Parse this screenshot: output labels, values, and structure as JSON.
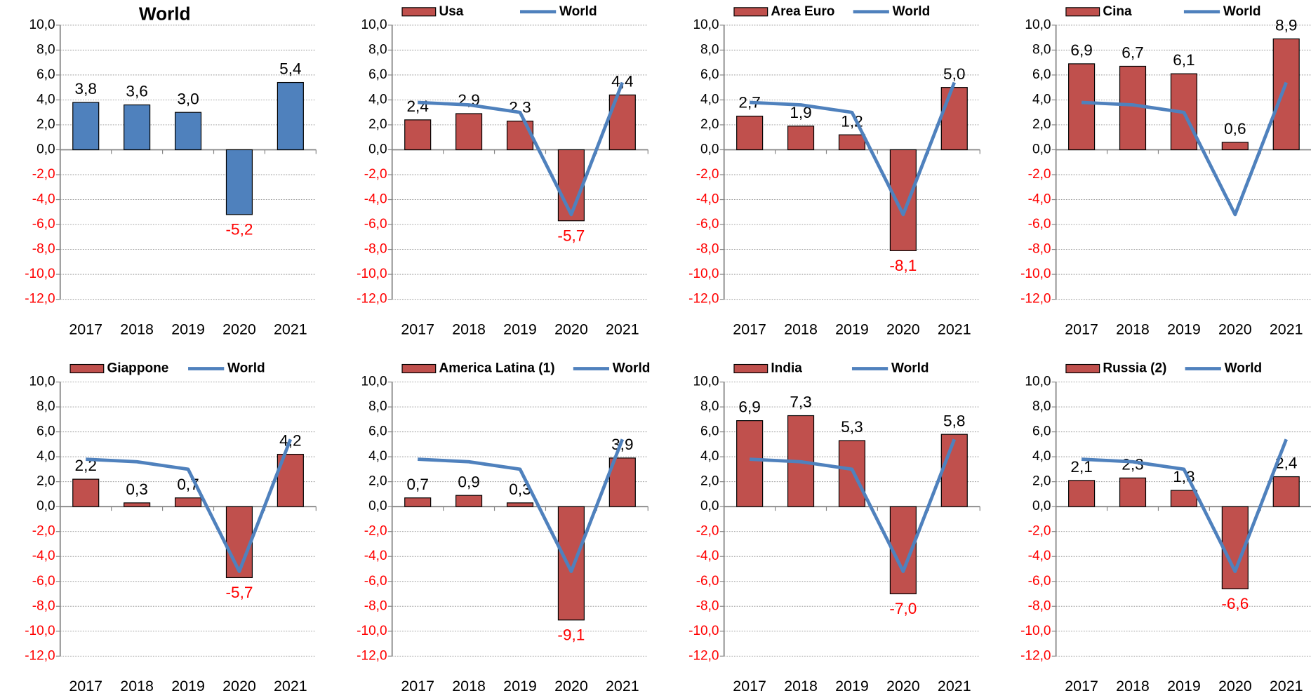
{
  "chart_data": [
    {
      "type": "bar",
      "title": "World",
      "categories": [
        "2017",
        "2018",
        "2019",
        "2020",
        "2021"
      ],
      "values": [
        3.8,
        3.6,
        3.0,
        -5.2,
        5.4
      ],
      "value_labels": [
        "3,8",
        "3,6",
        "3,0",
        "-5,2",
        "5,4"
      ],
      "color": "#4f81bd",
      "negative_label_color": "#ff0000",
      "ylim": [
        -12,
        10
      ],
      "yticks": [
        {
          "value": -12,
          "label": "-12,0"
        },
        {
          "value": -10,
          "label": "-10,0"
        },
        {
          "value": -8,
          "label": "-8,0"
        },
        {
          "value": -6,
          "label": "-6,0"
        },
        {
          "value": -4,
          "label": "-4,0"
        },
        {
          "value": -2,
          "label": "-2,0"
        },
        {
          "value": 0,
          "label": "0,0"
        },
        {
          "value": 2,
          "label": "2,0"
        },
        {
          "value": 4,
          "label": "4,0"
        },
        {
          "value": 6,
          "label": "6,0"
        },
        {
          "value": 8,
          "label": "8,0"
        },
        {
          "value": 10,
          "label": "10,0"
        }
      ],
      "grid": true
    },
    {
      "type": "combo",
      "categories": [
        "2017",
        "2018",
        "2019",
        "2020",
        "2021"
      ],
      "series": [
        {
          "name": "Usa",
          "type": "bar",
          "color": "#c0504d",
          "values": [
            2.4,
            2.9,
            2.3,
            -5.7,
            4.4
          ],
          "value_labels": [
            "2,4",
            "2,9",
            "2,3",
            "-5,7",
            "4,4"
          ]
        },
        {
          "name": "World",
          "type": "line",
          "color": "#4f81bd",
          "values": [
            3.8,
            3.6,
            3.0,
            -5.2,
            5.4
          ]
        }
      ],
      "negative_label_color": "#ff0000",
      "ylim": [
        -12,
        10
      ],
      "yticks": [
        {
          "value": -12,
          "label": "-12,0"
        },
        {
          "value": -10,
          "label": "-10,0"
        },
        {
          "value": -8,
          "label": "-8,0"
        },
        {
          "value": -6,
          "label": "-6,0"
        },
        {
          "value": -4,
          "label": "-4,0"
        },
        {
          "value": -2,
          "label": "-2,0"
        },
        {
          "value": 0,
          "label": "0,0"
        },
        {
          "value": 2,
          "label": "2,0"
        },
        {
          "value": 4,
          "label": "4,0"
        },
        {
          "value": 6,
          "label": "6,0"
        },
        {
          "value": 8,
          "label": "8,0"
        },
        {
          "value": 10,
          "label": "10,0"
        }
      ],
      "grid": true
    },
    {
      "type": "combo",
      "categories": [
        "2017",
        "2018",
        "2019",
        "2020",
        "2021"
      ],
      "series": [
        {
          "name": "Area Euro",
          "type": "bar",
          "color": "#c0504d",
          "values": [
            2.7,
            1.9,
            1.2,
            -8.1,
            5.0
          ],
          "value_labels": [
            "2,7",
            "1,9",
            "1,2",
            "-8,1",
            "5,0"
          ]
        },
        {
          "name": "World",
          "type": "line",
          "color": "#4f81bd",
          "values": [
            3.8,
            3.6,
            3.0,
            -5.2,
            5.4
          ]
        }
      ],
      "negative_label_color": "#ff0000",
      "ylim": [
        -12,
        10
      ],
      "yticks": [
        {
          "value": -12,
          "label": "-12,0"
        },
        {
          "value": -10,
          "label": "-10,0"
        },
        {
          "value": -8,
          "label": "-8,0"
        },
        {
          "value": -6,
          "label": "-6,0"
        },
        {
          "value": -4,
          "label": "-4,0"
        },
        {
          "value": -2,
          "label": "-2,0"
        },
        {
          "value": 0,
          "label": "0,0"
        },
        {
          "value": 2,
          "label": "2,0"
        },
        {
          "value": 4,
          "label": "4,0"
        },
        {
          "value": 6,
          "label": "6,0"
        },
        {
          "value": 8,
          "label": "8,0"
        },
        {
          "value": 10,
          "label": "10,0"
        }
      ],
      "grid": true
    },
    {
      "type": "combo",
      "categories": [
        "2017",
        "2018",
        "2019",
        "2020",
        "2021"
      ],
      "series": [
        {
          "name": "Cina",
          "type": "bar",
          "color": "#c0504d",
          "values": [
            6.9,
            6.7,
            6.1,
            0.6,
            8.9
          ],
          "value_labels": [
            "6,9",
            "6,7",
            "6,1",
            "0,6",
            "8,9"
          ]
        },
        {
          "name": "World",
          "type": "line",
          "color": "#4f81bd",
          "values": [
            3.8,
            3.6,
            3.0,
            -5.2,
            5.4
          ]
        }
      ],
      "negative_label_color": "#ff0000",
      "ylim": [
        -12,
        10
      ],
      "yticks": [
        {
          "value": -12,
          "label": "-12,0"
        },
        {
          "value": -10,
          "label": "-10,0"
        },
        {
          "value": -8,
          "label": "-8,0"
        },
        {
          "value": -6,
          "label": "-6,0"
        },
        {
          "value": -4,
          "label": "-4,0"
        },
        {
          "value": -2,
          "label": "-2,0"
        },
        {
          "value": 0,
          "label": "0,0"
        },
        {
          "value": 2,
          "label": "2,0"
        },
        {
          "value": 4,
          "label": "4,0"
        },
        {
          "value": 6,
          "label": "6,0"
        },
        {
          "value": 8,
          "label": "8,0"
        },
        {
          "value": 10,
          "label": "10,0"
        }
      ],
      "grid": true
    },
    {
      "type": "combo",
      "categories": [
        "2017",
        "2018",
        "2019",
        "2020",
        "2021"
      ],
      "series": [
        {
          "name": "Giappone",
          "type": "bar",
          "color": "#c0504d",
          "values": [
            2.2,
            0.3,
            0.7,
            -5.7,
            4.2
          ],
          "value_labels": [
            "2,2",
            "0,3",
            "0,7",
            "-5,7",
            "4,2"
          ]
        },
        {
          "name": "World",
          "type": "line",
          "color": "#4f81bd",
          "values": [
            3.8,
            3.6,
            3.0,
            -5.2,
            5.4
          ]
        }
      ],
      "negative_label_color": "#ff0000",
      "ylim": [
        -12,
        10
      ],
      "yticks": [
        {
          "value": -12,
          "label": "-12,0"
        },
        {
          "value": -10,
          "label": "-10,0"
        },
        {
          "value": -8,
          "label": "-8,0"
        },
        {
          "value": -6,
          "label": "-6,0"
        },
        {
          "value": -4,
          "label": "-4,0"
        },
        {
          "value": -2,
          "label": "-2,0"
        },
        {
          "value": 0,
          "label": "0,0"
        },
        {
          "value": 2,
          "label": "2,0"
        },
        {
          "value": 4,
          "label": "4,0"
        },
        {
          "value": 6,
          "label": "6,0"
        },
        {
          "value": 8,
          "label": "8,0"
        },
        {
          "value": 10,
          "label": "10,0"
        }
      ],
      "grid": true
    },
    {
      "type": "combo",
      "categories": [
        "2017",
        "2018",
        "2019",
        "2020",
        "2021"
      ],
      "series": [
        {
          "name": "America Latina (1)",
          "type": "bar",
          "color": "#c0504d",
          "values": [
            0.7,
            0.9,
            0.3,
            -9.1,
            3.9
          ],
          "value_labels": [
            "0,7",
            "0,9",
            "0,3",
            "-9,1",
            "3,9"
          ]
        },
        {
          "name": "World",
          "type": "line",
          "color": "#4f81bd",
          "values": [
            3.8,
            3.6,
            3.0,
            -5.2,
            5.4
          ]
        }
      ],
      "negative_label_color": "#ff0000",
      "ylim": [
        -12,
        10
      ],
      "yticks": [
        {
          "value": -12,
          "label": "-12,0"
        },
        {
          "value": -10,
          "label": "-10,0"
        },
        {
          "value": -8,
          "label": "-8,0"
        },
        {
          "value": -6,
          "label": "-6,0"
        },
        {
          "value": -4,
          "label": "-4,0"
        },
        {
          "value": -2,
          "label": "-2,0"
        },
        {
          "value": 0,
          "label": "0,0"
        },
        {
          "value": 2,
          "label": "2,0"
        },
        {
          "value": 4,
          "label": "4,0"
        },
        {
          "value": 6,
          "label": "6,0"
        },
        {
          "value": 8,
          "label": "8,0"
        },
        {
          "value": 10,
          "label": "10,0"
        }
      ],
      "grid": true
    },
    {
      "type": "combo",
      "categories": [
        "2017",
        "2018",
        "2019",
        "2020",
        "2021"
      ],
      "series": [
        {
          "name": "India",
          "type": "bar",
          "color": "#c0504d",
          "values": [
            6.9,
            7.3,
            5.3,
            -7.0,
            5.8
          ],
          "value_labels": [
            "6,9",
            "7,3",
            "5,3",
            "-7,0",
            "5,8"
          ]
        },
        {
          "name": "World",
          "type": "line",
          "color": "#4f81bd",
          "values": [
            3.8,
            3.6,
            3.0,
            -5.2,
            5.4
          ]
        }
      ],
      "negative_label_color": "#ff0000",
      "ylim": [
        -12,
        10
      ],
      "yticks": [
        {
          "value": -12,
          "label": "-12,0"
        },
        {
          "value": -10,
          "label": "-10,0"
        },
        {
          "value": -8,
          "label": "-8,0"
        },
        {
          "value": -6,
          "label": "-6,0"
        },
        {
          "value": -4,
          "label": "-4,0"
        },
        {
          "value": -2,
          "label": "-2,0"
        },
        {
          "value": 0,
          "label": "0,0"
        },
        {
          "value": 2,
          "label": "2,0"
        },
        {
          "value": 4,
          "label": "4,0"
        },
        {
          "value": 6,
          "label": "6,0"
        },
        {
          "value": 8,
          "label": "8,0"
        },
        {
          "value": 10,
          "label": "10,0"
        }
      ],
      "grid": true
    },
    {
      "type": "combo",
      "categories": [
        "2017",
        "2018",
        "2019",
        "2020",
        "2021"
      ],
      "series": [
        {
          "name": "Russia (2)",
          "type": "bar",
          "color": "#c0504d",
          "values": [
            2.1,
            2.3,
            1.3,
            -6.6,
            2.4
          ],
          "value_labels": [
            "2,1",
            "2,3",
            "1,3",
            "-6,6",
            "2,4"
          ]
        },
        {
          "name": "World",
          "type": "line",
          "color": "#4f81bd",
          "values": [
            3.8,
            3.6,
            3.0,
            -5.2,
            5.4
          ]
        }
      ],
      "negative_label_color": "#ff0000",
      "ylim": [
        -12,
        10
      ],
      "yticks": [
        {
          "value": -12,
          "label": "-12,0"
        },
        {
          "value": -10,
          "label": "-10,0"
        },
        {
          "value": -8,
          "label": "-8,0"
        },
        {
          "value": -6,
          "label": "-6,0"
        },
        {
          "value": -4,
          "label": "-4,0"
        },
        {
          "value": -2,
          "label": "-2,0"
        },
        {
          "value": 0,
          "label": "0,0"
        },
        {
          "value": 2,
          "label": "2,0"
        },
        {
          "value": 4,
          "label": "4,0"
        },
        {
          "value": 6,
          "label": "6,0"
        },
        {
          "value": 8,
          "label": "8,0"
        },
        {
          "value": 10,
          "label": "10,0"
        }
      ],
      "grid": true
    }
  ]
}
